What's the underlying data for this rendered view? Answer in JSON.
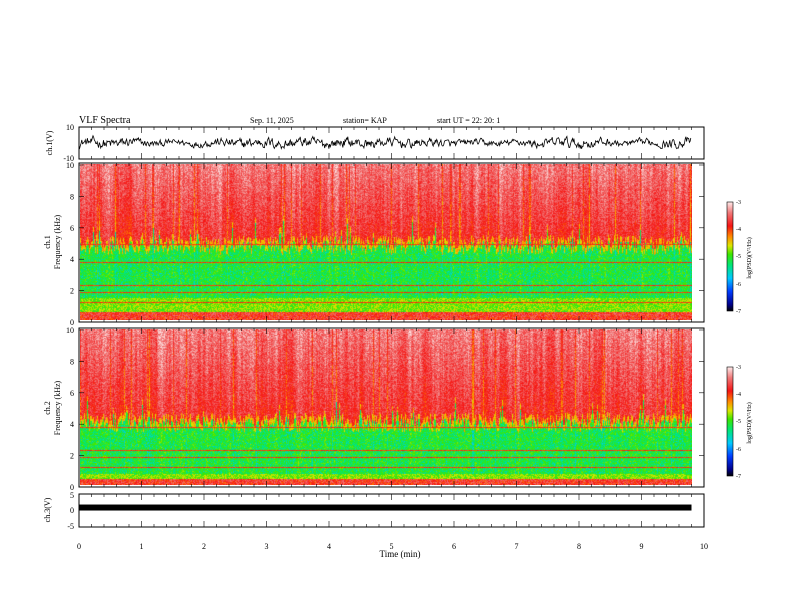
{
  "header": {
    "title": "VLF Spectra",
    "date": "Sep. 11, 2025",
    "station": "station= KAP",
    "start": "start  UT  =   22: 20: 1"
  },
  "chart_data": [
    {
      "id": "ch1-waveform",
      "type": "line",
      "ylabel": "ch.1(V)",
      "ylim": [
        -10,
        10
      ],
      "yticks": [
        "10",
        "-10"
      ],
      "x_range_min": [
        0,
        9.8
      ],
      "waveform_envelope": [
        3.5,
        6
      ],
      "color": "#000000"
    },
    {
      "id": "ch1-spectrogram",
      "type": "heatmap",
      "ylabel_line1": "ch.1",
      "ylabel_line2": "Frequency (kHz)",
      "ylim": [
        0,
        10
      ],
      "yticks": [
        "0",
        "2",
        "4",
        "6",
        "8",
        "10"
      ],
      "x_range_min": [
        0,
        9.8
      ],
      "colorbar": {
        "label": "log(PSD)(V²/Hz)",
        "range": [
          -7,
          -3
        ],
        "ticks": [
          "-3",
          "-4",
          "-5",
          "-6",
          "-7"
        ]
      },
      "band_transitions_khz": {
        "green_top": 4.8,
        "green_bottom": 1.4,
        "warm_floor": 0.5
      }
    },
    {
      "id": "ch2-spectrogram",
      "type": "heatmap",
      "ylabel_line1": "ch.2",
      "ylabel_line2": "Frequency (kHz)",
      "ylim": [
        0,
        10
      ],
      "yticks": [
        "0",
        "2",
        "4",
        "6",
        "8",
        "10"
      ],
      "x_range_min": [
        0,
        9.8
      ],
      "colorbar": {
        "label": "log(PSD)(V²/Hz)",
        "range": [
          -7,
          -3
        ],
        "ticks": [
          "-3",
          "-4",
          "-5",
          "-6",
          "-7"
        ]
      },
      "band_transitions_khz": {
        "green_top": 4.0,
        "green_bottom": 0.7,
        "warm_floor": 0.4
      }
    },
    {
      "id": "ch3-waveform",
      "type": "line",
      "ylabel": "ch.3(V)",
      "ylim": [
        -5,
        5
      ],
      "yticks": [
        "5",
        "0",
        "-5"
      ],
      "x_range_min": [
        0,
        9.8
      ],
      "level_v": 0.9,
      "color": "#000000"
    }
  ],
  "xaxis": {
    "label": "Time (min)",
    "ticks": [
      "0",
      "1",
      "2",
      "3",
      "4",
      "5",
      "6",
      "7",
      "8",
      "9",
      "10"
    ],
    "range": [
      0,
      10
    ]
  }
}
